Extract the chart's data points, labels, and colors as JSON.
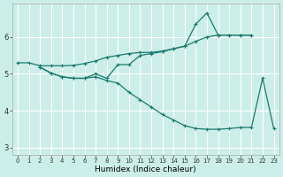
{
  "xlabel": "Humidex (Indice chaleur)",
  "bg_color": "#cceee8",
  "grid_color": "#ffffff",
  "line_color": "#1a7a6e",
  "xlim": [
    -0.5,
    23.5
  ],
  "ylim": [
    2.8,
    6.9
  ],
  "yticks": [
    3,
    4,
    5,
    6
  ],
  "xticks": [
    0,
    1,
    2,
    3,
    4,
    5,
    6,
    7,
    8,
    9,
    10,
    11,
    12,
    13,
    14,
    15,
    16,
    17,
    18,
    19,
    20,
    21,
    22,
    23
  ],
  "series1_x": [
    0,
    1,
    2,
    3,
    4,
    5,
    6,
    7,
    8,
    9,
    10,
    11,
    12,
    13,
    14,
    15,
    16,
    17,
    18,
    19,
    20,
    21
  ],
  "series1_y": [
    5.3,
    5.3,
    5.22,
    5.22,
    5.22,
    5.23,
    5.28,
    5.35,
    5.45,
    5.5,
    5.55,
    5.58,
    5.58,
    5.62,
    5.68,
    5.75,
    5.88,
    6.0,
    6.05,
    6.05,
    6.05,
    6.05
  ],
  "series2_x": [
    2,
    3,
    4,
    5,
    6,
    7,
    8,
    9,
    10,
    11,
    12,
    13,
    14,
    15,
    16,
    17,
    18,
    19,
    20,
    21
  ],
  "series2_y": [
    5.18,
    5.02,
    4.92,
    4.88,
    4.88,
    5.0,
    4.88,
    5.25,
    5.25,
    5.5,
    5.55,
    5.6,
    5.68,
    5.75,
    6.35,
    6.65,
    6.05,
    6.05,
    6.05,
    6.05
  ],
  "series3_x": [
    2,
    3,
    4,
    5,
    6,
    7,
    8,
    9,
    10,
    11,
    12,
    13,
    14,
    15,
    16,
    17,
    18,
    19,
    20,
    21,
    22,
    23
  ],
  "series3_y": [
    5.18,
    5.02,
    4.92,
    4.88,
    4.88,
    4.92,
    4.82,
    4.75,
    4.5,
    4.3,
    4.1,
    3.9,
    3.75,
    3.6,
    3.52,
    3.5,
    3.5,
    3.52,
    3.55,
    3.55,
    4.88,
    3.52
  ],
  "marker_size": 2.5,
  "linewidth": 0.9,
  "tick_fontsize_x": 5,
  "tick_fontsize_y": 6,
  "xlabel_fontsize": 6.5
}
